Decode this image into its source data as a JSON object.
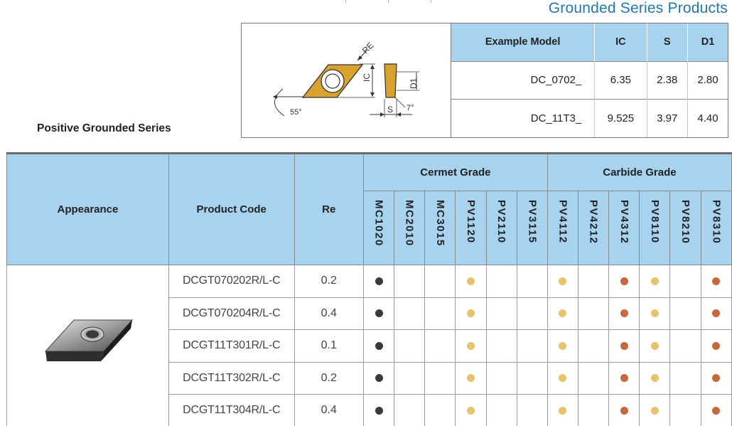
{
  "page": {
    "top_title": "Grounded Series Products",
    "section_title": "Positive Grounded Series"
  },
  "drawing": {
    "labels": {
      "re": "RE",
      "ic": "IC",
      "d1": "D1",
      "s": "S",
      "angle_55": "55°",
      "angle_7": "7°"
    }
  },
  "spec_table": {
    "headers": [
      "Example Model",
      "IC",
      "S",
      "D1"
    ],
    "rows": [
      [
        "DC_0702_",
        "6.35",
        "2.38",
        "2.80"
      ],
      [
        "DC_11T3_",
        "9.525",
        "3.97",
        "4.40"
      ]
    ]
  },
  "main_table": {
    "headers": {
      "appearance": "Appearance",
      "product_code": "Product Code",
      "re": "Re",
      "cermet_group": "Cermet Grade",
      "carbide_group": "Carbide Grade"
    },
    "cermet_grades": [
      "MC1020",
      "MC2010",
      "MC3015",
      "PV1120",
      "PV2110",
      "PV3115"
    ],
    "carbide_grades": [
      "PV4112",
      "PV4212",
      "PV4312",
      "PV8110",
      "PV8210",
      "PV8310"
    ],
    "rows": [
      {
        "code": "DCGT070202R/L-C",
        "re": "0.2",
        "marks": [
          "black",
          "",
          "",
          "gold",
          "",
          "",
          "gold",
          "",
          "brown",
          "gold",
          "",
          "brown"
        ]
      },
      {
        "code": "DCGT070204R/L-C",
        "re": "0.4",
        "marks": [
          "black",
          "",
          "",
          "gold",
          "",
          "",
          "gold",
          "",
          "brown",
          "gold",
          "",
          "brown"
        ]
      },
      {
        "code": "DCGT11T301R/L-C",
        "re": "0.1",
        "marks": [
          "black",
          "",
          "",
          "gold",
          "",
          "",
          "gold",
          "",
          "brown",
          "gold",
          "",
          "brown"
        ]
      },
      {
        "code": "DCGT11T302R/L-C",
        "re": "0.2",
        "marks": [
          "black",
          "",
          "",
          "gold",
          "",
          "",
          "gold",
          "",
          "brown",
          "gold",
          "",
          "brown"
        ]
      },
      {
        "code": "DCGT11T304R/L-C",
        "re": "0.4",
        "marks": [
          "black",
          "",
          "",
          "gold",
          "",
          "",
          "gold",
          "",
          "brown",
          "gold",
          "",
          "brown"
        ]
      }
    ]
  },
  "colors": {
    "header_bg": "#a8d3ee",
    "title_blue": "#1e78b8",
    "black": "#3a3a3a",
    "gold": "#e8c36a",
    "brown": "#c8673a",
    "insert_gold": "#d9a22b"
  }
}
